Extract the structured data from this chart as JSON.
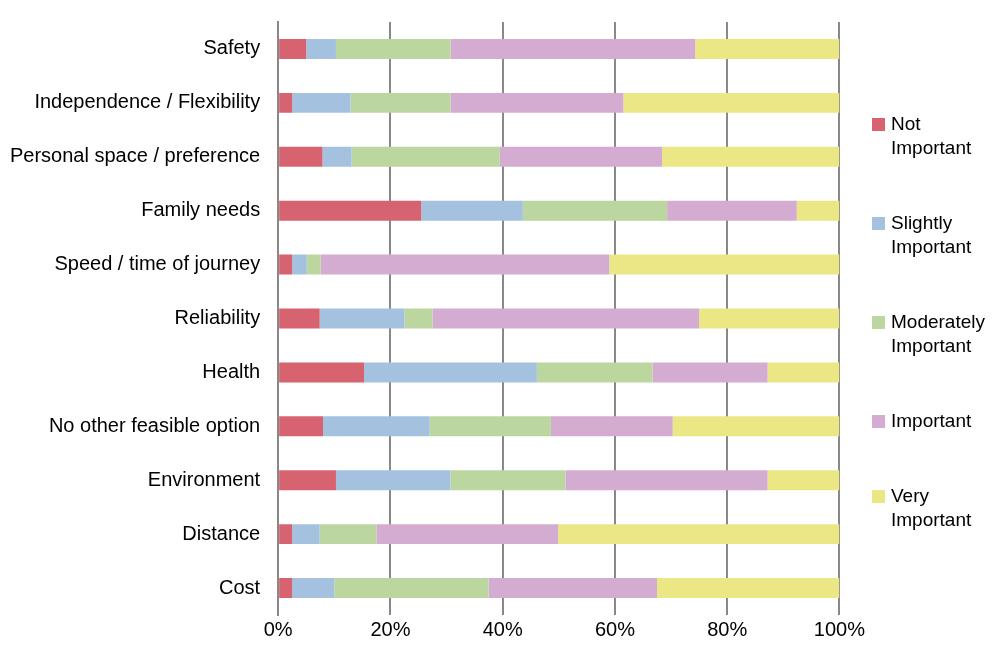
{
  "chart_data": {
    "type": "bar",
    "orientation": "horizontal",
    "stacked": true,
    "categories": [
      "Safety",
      "Independence / Flexibility",
      "Personal space / preference",
      "Family needs",
      "Speed / time of journey",
      "Reliability",
      "Health",
      "No other feasible option",
      "Environment",
      "Distance",
      "Cost"
    ],
    "series": [
      {
        "name": "Not Important",
        "color": "#d6636f",
        "values": [
          5,
          2.5,
          7.9,
          25.5,
          2.5,
          7.4,
          15.3,
          8,
          10.3,
          2.5,
          2.5
        ]
      },
      {
        "name": "Slightly Important",
        "color": "#a4c2e0",
        "values": [
          5.3,
          10.4,
          5.2,
          18.1,
          2.6,
          15.1,
          30.8,
          19,
          20.4,
          4.9,
          7.5
        ]
      },
      {
        "name": "Moderately Important",
        "color": "#bcd6a0",
        "values": [
          20.4,
          17.8,
          26.4,
          25.7,
          2.5,
          5,
          20.6,
          21.6,
          20.5,
          10.1,
          27.5
        ]
      },
      {
        "name": "Important",
        "color": "#d4acd1",
        "values": [
          43.6,
          30.8,
          28.9,
          23.1,
          51.4,
          47.5,
          20.5,
          21.7,
          36,
          32.4,
          30
        ]
      },
      {
        "name": "Very Important",
        "color": "#eae784",
        "values": [
          25.7,
          38.5,
          31.6,
          7.6,
          41,
          25,
          12.8,
          29.7,
          12.8,
          50.1,
          32.5
        ]
      }
    ],
    "xlim": [
      0,
      100
    ],
    "xticks": [
      {
        "value": 0,
        "label": "0%"
      },
      {
        "value": 20,
        "label": "20%"
      },
      {
        "value": 40,
        "label": "40%"
      },
      {
        "value": 60,
        "label": "60%"
      },
      {
        "value": 80,
        "label": "80%"
      },
      {
        "value": 100,
        "label": "100%"
      }
    ],
    "grid": "x",
    "legend": "right"
  }
}
